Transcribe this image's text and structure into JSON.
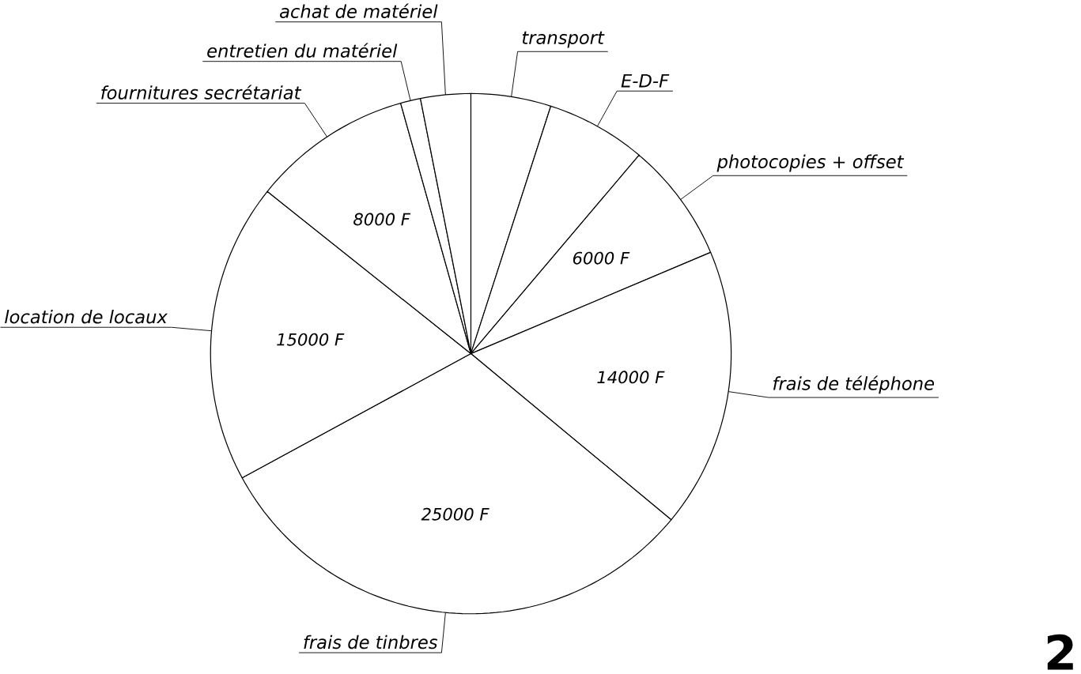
{
  "chart_data": {
    "type": "pie",
    "categories": [
      "transport",
      "E-D-F",
      "photocopies + offset",
      "frais de téléphone",
      "frais de tinbres",
      "location de locaux",
      "fournitures secrétariat",
      "entretien du matériel",
      "achat de matériel"
    ],
    "values": [
      4000,
      5000,
      6000,
      14000,
      25000,
      15000,
      8000,
      1000,
      2500
    ],
    "value_labels": [
      null,
      null,
      "6000 F",
      "14000 F",
      "25000 F",
      "15000 F",
      "8000 F",
      null,
      null
    ],
    "colors": [
      "#ffffff",
      "#ffffff",
      "#ffffff",
      "#ffffff",
      "#ffffff",
      "#ffffff",
      "#ffffff",
      "#ffffff",
      "#ffffff"
    ],
    "annotations": [
      "2"
    ]
  }
}
